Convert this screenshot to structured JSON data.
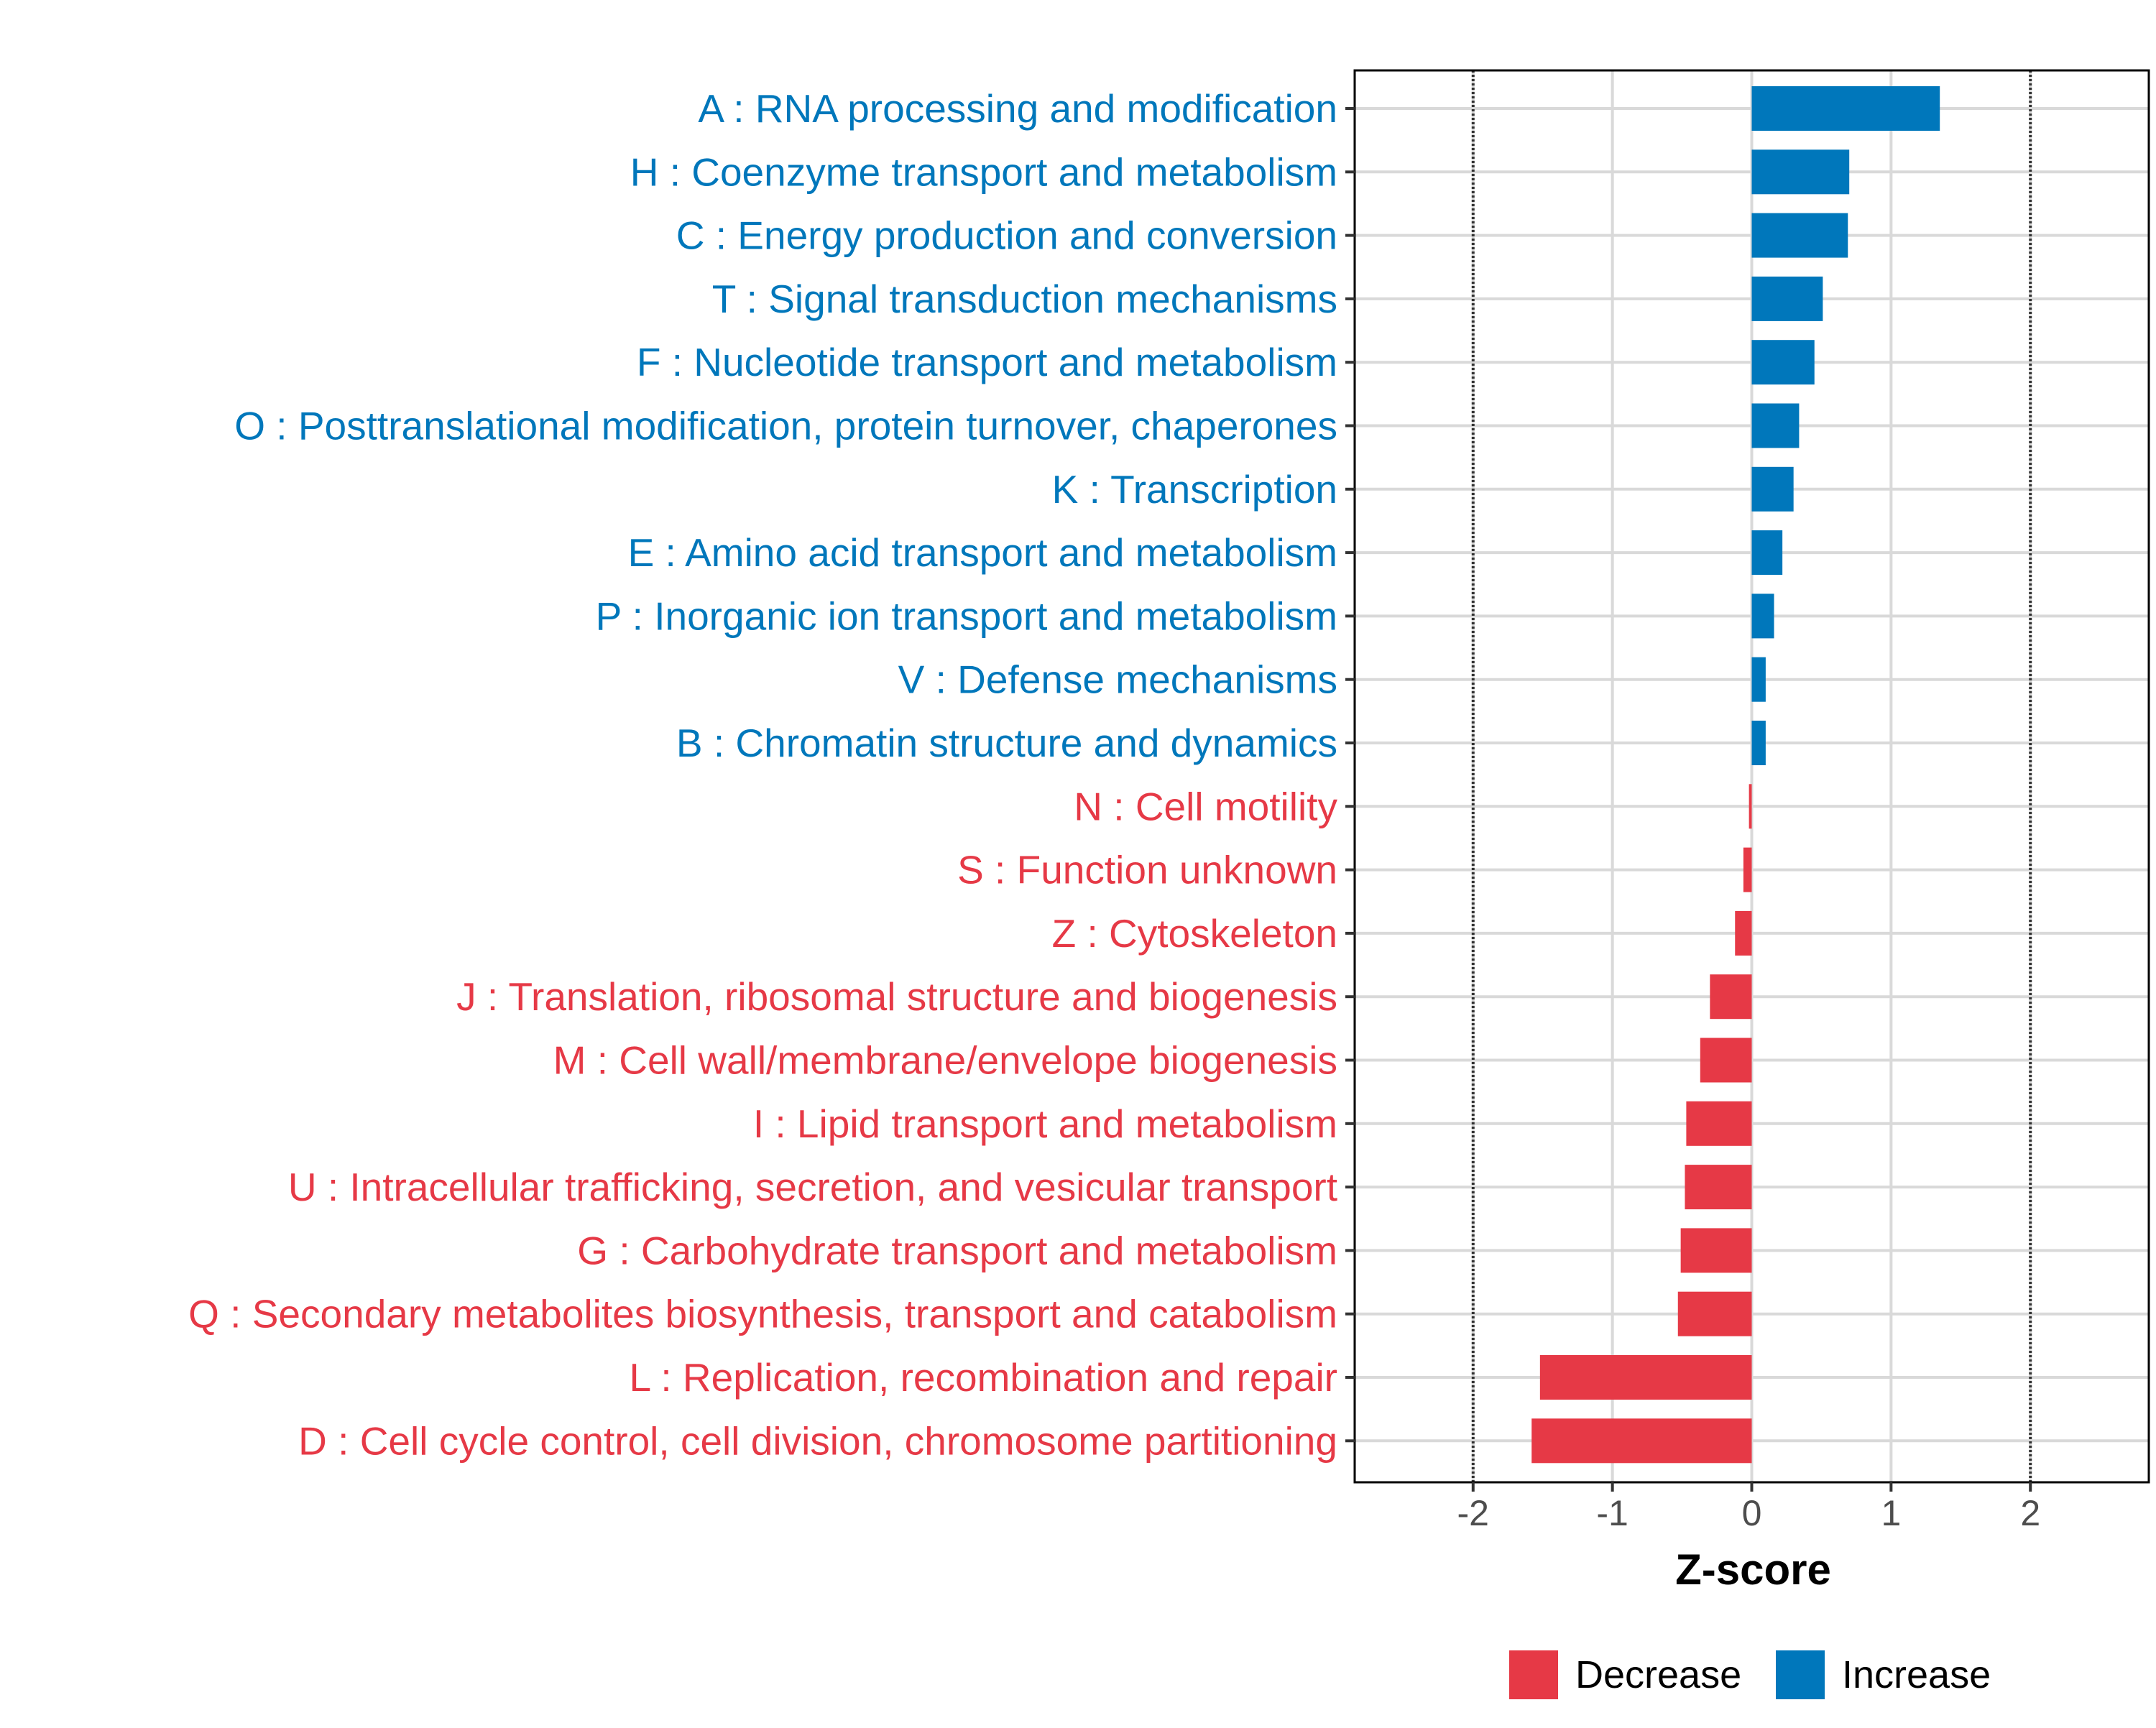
{
  "chart_data": {
    "type": "bar",
    "orientation": "horizontal",
    "categories": [
      "A : RNA processing and modification",
      "H : Coenzyme transport and metabolism",
      "C : Energy production and conversion",
      "T : Signal transduction mechanisms",
      "F : Nucleotide transport and metabolism",
      "O : Posttranslational modification, protein turnover, chaperones",
      "K : Transcription",
      "E : Amino acid transport and metabolism",
      "P : Inorganic ion transport and metabolism",
      "V : Defense mechanisms",
      "B : Chromatin structure and dynamics",
      "N : Cell motility",
      "S : Function unknown",
      "Z : Cytoskeleton",
      "J : Translation, ribosomal structure and biogenesis",
      "M : Cell wall/membrane/envelope biogenesis",
      "I : Lipid transport and metabolism",
      "U : Intracellular trafficking, secretion, and vesicular transport",
      "G : Carbohydrate transport and metabolism",
      "Q : Secondary metabolites biosynthesis, transport and catabolism",
      "L : Replication, recombination and repair",
      "D : Cell cycle control, cell division, chromosome partitioning"
    ],
    "values": [
      1.35,
      0.7,
      0.69,
      0.51,
      0.45,
      0.34,
      0.3,
      0.22,
      0.16,
      0.1,
      0.1,
      -0.02,
      -0.06,
      -0.12,
      -0.3,
      -0.37,
      -0.47,
      -0.48,
      -0.51,
      -0.53,
      -1.52,
      -1.58
    ],
    "groups": [
      "Increase",
      "Increase",
      "Increase",
      "Increase",
      "Increase",
      "Increase",
      "Increase",
      "Increase",
      "Increase",
      "Increase",
      "Increase",
      "Decrease",
      "Decrease",
      "Decrease",
      "Decrease",
      "Decrease",
      "Decrease",
      "Decrease",
      "Decrease",
      "Decrease",
      "Decrease",
      "Decrease"
    ],
    "xlabel": "Z-score",
    "ylabel": "",
    "xlim": [
      -2.85,
      2.85
    ],
    "xticks": [
      -2,
      -1,
      0,
      1,
      2
    ],
    "xtick_labels": [
      "-2",
      "-1",
      "0",
      "1",
      "2"
    ],
    "reference_lines": [
      -2,
      2
    ],
    "grid": true,
    "legend": {
      "position": "bottom",
      "entries": [
        {
          "label": "Decrease",
          "color": "#e63946"
        },
        {
          "label": "Increase",
          "color": "#0077bb"
        }
      ]
    },
    "colors": {
      "Increase": "#0077bb",
      "Decrease": "#e63946"
    }
  }
}
